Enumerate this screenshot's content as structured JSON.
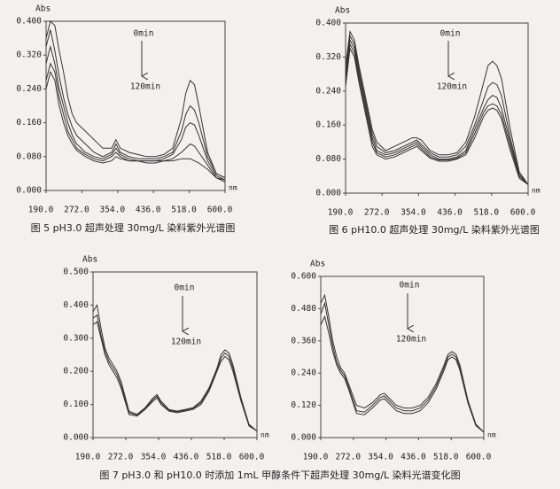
{
  "chart_data": [
    {
      "type": "line",
      "caption": "图 5 pH3.0 超声处理 30mg/L 染料紫外光谱图",
      "x_label": "nm",
      "y_label": "Abs",
      "annotations": [
        "0min",
        "120min"
      ],
      "x": [
        190,
        200,
        210,
        220,
        230,
        240,
        250,
        260,
        280,
        300,
        320,
        340,
        350,
        360,
        380,
        400,
        420,
        440,
        460,
        480,
        500,
        510,
        520,
        530,
        540,
        560,
        580,
        600
      ],
      "series": [
        {
          "color": "#333333",
          "values": [
            0.36,
            0.4,
            0.39,
            0.33,
            0.28,
            0.22,
            0.18,
            0.16,
            0.14,
            0.12,
            0.1,
            0.1,
            0.12,
            0.1,
            0.09,
            0.085,
            0.08,
            0.08,
            0.085,
            0.1,
            0.17,
            0.23,
            0.26,
            0.25,
            0.2,
            0.09,
            0.04,
            0.03
          ]
        },
        {
          "color": "#333333",
          "values": [
            0.34,
            0.38,
            0.33,
            0.27,
            0.22,
            0.18,
            0.15,
            0.13,
            0.11,
            0.09,
            0.08,
            0.09,
            0.11,
            0.09,
            0.08,
            0.075,
            0.075,
            0.075,
            0.08,
            0.09,
            0.14,
            0.18,
            0.2,
            0.19,
            0.16,
            0.08,
            0.04,
            0.03
          ]
        },
        {
          "color": "#333333",
          "values": [
            0.3,
            0.34,
            0.3,
            0.24,
            0.2,
            0.16,
            0.13,
            0.11,
            0.09,
            0.08,
            0.075,
            0.085,
            0.1,
            0.085,
            0.075,
            0.07,
            0.07,
            0.07,
            0.075,
            0.085,
            0.12,
            0.15,
            0.16,
            0.155,
            0.13,
            0.07,
            0.035,
            0.025
          ]
        },
        {
          "color": "#333333",
          "values": [
            0.26,
            0.3,
            0.28,
            0.22,
            0.18,
            0.14,
            0.12,
            0.1,
            0.085,
            0.075,
            0.07,
            0.08,
            0.09,
            0.08,
            0.07,
            0.07,
            0.065,
            0.065,
            0.07,
            0.075,
            0.09,
            0.1,
            0.11,
            0.105,
            0.09,
            0.06,
            0.03,
            0.025
          ]
        },
        {
          "color": "#333333",
          "values": [
            0.24,
            0.28,
            0.26,
            0.2,
            0.16,
            0.13,
            0.11,
            0.095,
            0.08,
            0.07,
            0.065,
            0.07,
            0.08,
            0.075,
            0.07,
            0.07,
            0.07,
            0.07,
            0.07,
            0.07,
            0.075,
            0.075,
            0.075,
            0.07,
            0.065,
            0.05,
            0.03,
            0.02
          ]
        }
      ],
      "xlim": [
        190,
        600
      ],
      "ylim": [
        0,
        0.4
      ],
      "xticks": [
        {
          "value": 190,
          "label": "190.0"
        },
        {
          "value": 272,
          "label": "272.0"
        },
        {
          "value": 354,
          "label": "354.0"
        },
        {
          "value": 436,
          "label": "436.0"
        },
        {
          "value": 518,
          "label": "518.0"
        },
        {
          "value": 600,
          "label": "600.0"
        }
      ],
      "yticks": [
        {
          "value": 0,
          "label": "0.000"
        },
        {
          "value": 0.08,
          "label": "0.080"
        },
        {
          "value": 0.16,
          "label": "0.160"
        },
        {
          "value": 0.24,
          "label": "0.240"
        },
        {
          "value": 0.32,
          "label": "0.320"
        },
        {
          "value": 0.4,
          "label": "0.400"
        }
      ]
    },
    {
      "type": "line",
      "caption": "图 6 pH10.0 超声处理 30mg/L 染料紫外光谱图",
      "x_label": "nm",
      "y_label": "Abs",
      "annotations": [
        "0min",
        "120min"
      ],
      "x": [
        190,
        200,
        210,
        220,
        230,
        240,
        250,
        260,
        280,
        300,
        320,
        340,
        350,
        360,
        380,
        400,
        420,
        440,
        460,
        480,
        500,
        510,
        520,
        530,
        540,
        560,
        580,
        600
      ],
      "series": [
        {
          "color": "#333333",
          "values": [
            0.3,
            0.38,
            0.36,
            0.3,
            0.25,
            0.2,
            0.15,
            0.12,
            0.1,
            0.11,
            0.12,
            0.13,
            0.13,
            0.125,
            0.1,
            0.09,
            0.09,
            0.095,
            0.12,
            0.18,
            0.26,
            0.3,
            0.31,
            0.3,
            0.27,
            0.15,
            0.05,
            0.02
          ]
        },
        {
          "color": "#333333",
          "values": [
            0.28,
            0.37,
            0.35,
            0.29,
            0.24,
            0.19,
            0.14,
            0.11,
            0.095,
            0.1,
            0.11,
            0.12,
            0.125,
            0.115,
            0.095,
            0.085,
            0.085,
            0.09,
            0.11,
            0.16,
            0.22,
            0.25,
            0.26,
            0.255,
            0.23,
            0.13,
            0.045,
            0.02
          ]
        },
        {
          "color": "#333333",
          "values": [
            0.27,
            0.36,
            0.34,
            0.28,
            0.23,
            0.18,
            0.13,
            0.1,
            0.09,
            0.095,
            0.105,
            0.115,
            0.12,
            0.11,
            0.09,
            0.08,
            0.08,
            0.085,
            0.1,
            0.15,
            0.2,
            0.22,
            0.23,
            0.225,
            0.2,
            0.12,
            0.04,
            0.02
          ]
        },
        {
          "color": "#333333",
          "values": [
            0.26,
            0.35,
            0.33,
            0.27,
            0.22,
            0.17,
            0.12,
            0.095,
            0.085,
            0.09,
            0.1,
            0.11,
            0.115,
            0.105,
            0.085,
            0.078,
            0.078,
            0.082,
            0.095,
            0.14,
            0.19,
            0.205,
            0.21,
            0.205,
            0.185,
            0.11,
            0.04,
            0.02
          ]
        },
        {
          "color": "#333333",
          "values": [
            0.25,
            0.34,
            0.32,
            0.26,
            0.21,
            0.16,
            0.11,
            0.09,
            0.08,
            0.085,
            0.095,
            0.105,
            0.11,
            0.1,
            0.082,
            0.075,
            0.075,
            0.08,
            0.09,
            0.13,
            0.18,
            0.195,
            0.2,
            0.195,
            0.175,
            0.1,
            0.035,
            0.02
          ]
        }
      ],
      "xlim": [
        190,
        600
      ],
      "ylim": [
        0,
        0.4
      ],
      "xticks": [
        {
          "value": 190,
          "label": "190.0"
        },
        {
          "value": 272,
          "label": "272.0"
        },
        {
          "value": 354,
          "label": "354.0"
        },
        {
          "value": 436,
          "label": "436.0"
        },
        {
          "value": 518,
          "label": "518.0"
        },
        {
          "value": 600,
          "label": "600.0"
        }
      ],
      "yticks": [
        {
          "value": 0,
          "label": "0.000"
        },
        {
          "value": 0.08,
          "label": "0.080"
        },
        {
          "value": 0.16,
          "label": "0.160"
        },
        {
          "value": 0.24,
          "label": "0.240"
        },
        {
          "value": 0.32,
          "label": "0.320"
        },
        {
          "value": 0.4,
          "label": "0.400"
        }
      ]
    },
    {
      "type": "line",
      "x_label": "nm",
      "y_label": "Abs",
      "annotations": [
        "0min",
        "120min"
      ],
      "x": [
        190,
        200,
        210,
        220,
        230,
        240,
        250,
        260,
        280,
        300,
        320,
        340,
        350,
        360,
        380,
        400,
        420,
        440,
        460,
        480,
        500,
        510,
        520,
        530,
        540,
        560,
        580,
        600
      ],
      "series": [
        {
          "color": "#333333",
          "values": [
            0.38,
            0.4,
            0.33,
            0.27,
            0.24,
            0.22,
            0.2,
            0.17,
            0.08,
            0.07,
            0.09,
            0.12,
            0.13,
            0.11,
            0.085,
            0.08,
            0.085,
            0.09,
            0.11,
            0.15,
            0.21,
            0.25,
            0.265,
            0.255,
            0.22,
            0.12,
            0.04,
            0.02
          ]
        },
        {
          "color": "#333333",
          "values": [
            0.36,
            0.37,
            0.31,
            0.26,
            0.23,
            0.21,
            0.19,
            0.16,
            0.075,
            0.068,
            0.088,
            0.115,
            0.125,
            0.105,
            0.082,
            0.078,
            0.082,
            0.088,
            0.105,
            0.145,
            0.205,
            0.24,
            0.255,
            0.245,
            0.21,
            0.115,
            0.038,
            0.02
          ]
        },
        {
          "color": "#333333",
          "values": [
            0.34,
            0.35,
            0.3,
            0.25,
            0.22,
            0.2,
            0.18,
            0.15,
            0.07,
            0.065,
            0.085,
            0.11,
            0.12,
            0.1,
            0.08,
            0.075,
            0.08,
            0.085,
            0.1,
            0.14,
            0.2,
            0.23,
            0.245,
            0.235,
            0.2,
            0.11,
            0.035,
            0.02
          ]
        }
      ],
      "xlim": [
        190,
        600
      ],
      "ylim": [
        0,
        0.5
      ],
      "xticks": [
        {
          "value": 190,
          "label": "190.0"
        },
        {
          "value": 272,
          "label": "272.0"
        },
        {
          "value": 354,
          "label": "354.0"
        },
        {
          "value": 436,
          "label": "436.0"
        },
        {
          "value": 518,
          "label": "518.0"
        },
        {
          "value": 600,
          "label": "600.0"
        }
      ],
      "yticks": [
        {
          "value": 0,
          "label": "0.000"
        },
        {
          "value": 0.1,
          "label": "0.100"
        },
        {
          "value": 0.2,
          "label": "0.200"
        },
        {
          "value": 0.3,
          "label": "0.300"
        },
        {
          "value": 0.4,
          "label": "0.400"
        },
        {
          "value": 0.5,
          "label": "0.500"
        }
      ]
    },
    {
      "type": "line",
      "x_label": "nm",
      "y_label": "Abs",
      "annotations": [
        "0min",
        "120min"
      ],
      "x": [
        190,
        200,
        210,
        220,
        230,
        240,
        250,
        260,
        280,
        300,
        320,
        340,
        350,
        360,
        380,
        400,
        420,
        440,
        460,
        480,
        500,
        510,
        520,
        530,
        540,
        560,
        580,
        600
      ],
      "series": [
        {
          "color": "#333333",
          "values": [
            0.5,
            0.53,
            0.45,
            0.36,
            0.3,
            0.26,
            0.24,
            0.2,
            0.12,
            0.11,
            0.13,
            0.16,
            0.165,
            0.15,
            0.12,
            0.11,
            0.11,
            0.12,
            0.15,
            0.2,
            0.27,
            0.31,
            0.32,
            0.31,
            0.27,
            0.14,
            0.05,
            0.02
          ]
        },
        {
          "color": "#333333",
          "values": [
            0.46,
            0.5,
            0.42,
            0.34,
            0.28,
            0.25,
            0.23,
            0.19,
            0.1,
            0.095,
            0.12,
            0.15,
            0.155,
            0.14,
            0.11,
            0.1,
            0.1,
            0.11,
            0.14,
            0.19,
            0.26,
            0.3,
            0.31,
            0.3,
            0.26,
            0.135,
            0.048,
            0.02
          ]
        },
        {
          "color": "#333333",
          "values": [
            0.42,
            0.45,
            0.39,
            0.32,
            0.27,
            0.24,
            0.22,
            0.18,
            0.09,
            0.085,
            0.11,
            0.14,
            0.145,
            0.13,
            0.1,
            0.09,
            0.09,
            0.1,
            0.13,
            0.18,
            0.25,
            0.29,
            0.3,
            0.29,
            0.25,
            0.13,
            0.045,
            0.02
          ]
        }
      ],
      "xlim": [
        190,
        600
      ],
      "ylim": [
        0,
        0.6
      ],
      "xticks": [
        {
          "value": 190,
          "label": "190.0"
        },
        {
          "value": 272,
          "label": "272.0"
        },
        {
          "value": 354,
          "label": "354.0"
        },
        {
          "value": 436,
          "label": "436.0"
        },
        {
          "value": 518,
          "label": "518.0"
        },
        {
          "value": 600,
          "label": "600.0"
        }
      ],
      "yticks": [
        {
          "value": 0,
          "label": "0.000"
        },
        {
          "value": 0.12,
          "label": "0.120"
        },
        {
          "value": 0.24,
          "label": "0.240"
        },
        {
          "value": 0.36,
          "label": "0.360"
        },
        {
          "value": 0.48,
          "label": "0.480"
        },
        {
          "value": 0.6,
          "label": "0.600"
        }
      ]
    }
  ],
  "figure_caption": "图 7 pH3.0 和 pH10.0 时添加 1mL 甲醇条件下超声处理 30mg/L 染料光谱变化图"
}
